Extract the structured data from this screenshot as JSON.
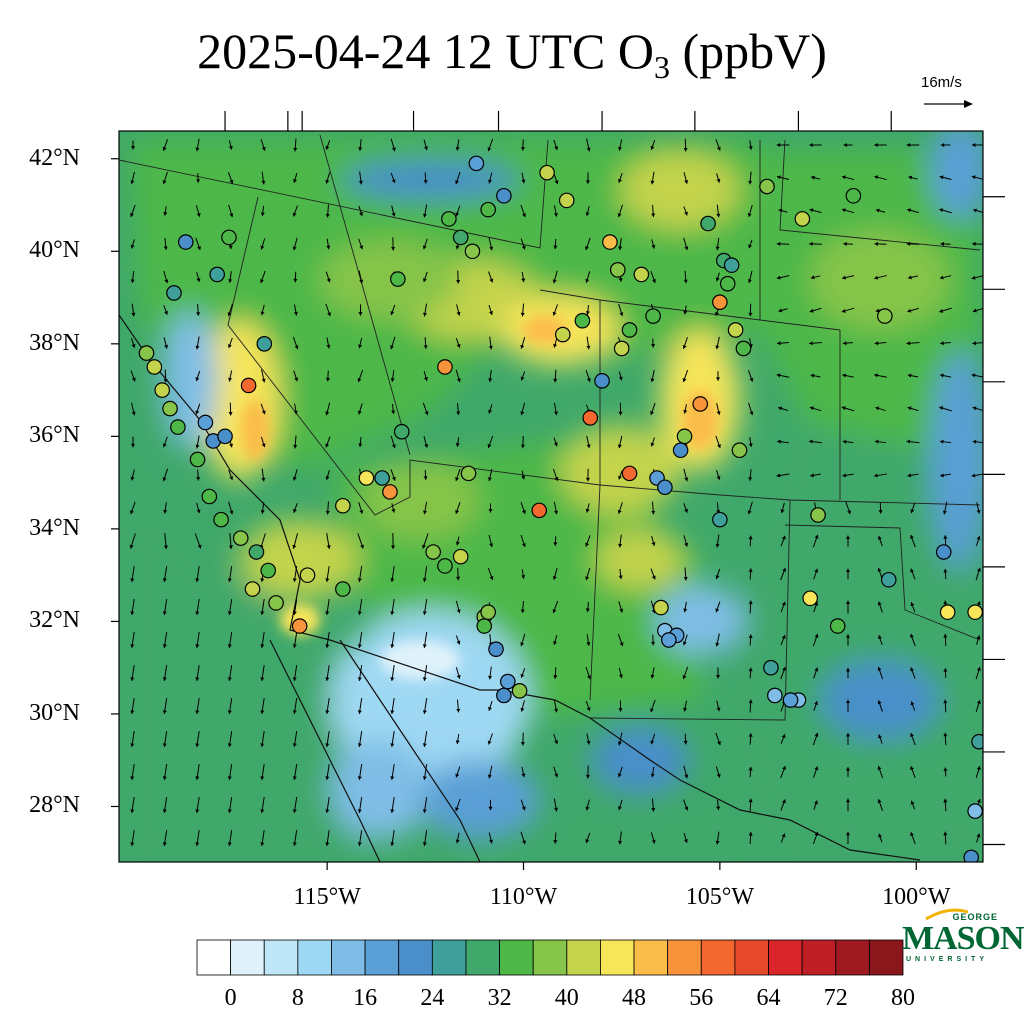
{
  "title": {
    "prefix": "2025-04-24 12 UTC O",
    "subscript": "3",
    "suffix": " (ppbV)"
  },
  "wind_reference": {
    "label": "16m/s"
  },
  "map": {
    "projection": "lat-lon",
    "lat_range": [
      26.8,
      42.6
    ],
    "lon_range": [
      -120.3,
      -98.3
    ],
    "lat_ticks": [
      {
        "value": 42,
        "label": "42°N"
      },
      {
        "value": 40,
        "label": "40°N"
      },
      {
        "value": 38,
        "label": "38°N"
      },
      {
        "value": 36,
        "label": "36°N"
      },
      {
        "value": 34,
        "label": "34°N"
      },
      {
        "value": 32,
        "label": "32°N"
      },
      {
        "value": 30,
        "label": "30°N"
      },
      {
        "value": 28,
        "label": "28°N"
      }
    ],
    "lon_ticks": [
      {
        "value": -115,
        "label": "115°W"
      },
      {
        "value": -110,
        "label": "110°W"
      },
      {
        "value": -105,
        "label": "105°W"
      },
      {
        "value": -100,
        "label": "100°W"
      }
    ]
  },
  "colorbar": {
    "labels": [
      "0",
      "8",
      "16",
      "24",
      "32",
      "40",
      "48",
      "56",
      "64",
      "72",
      "80"
    ],
    "colors": [
      "#ffffff",
      "#dff2fb",
      "#bfe6f7",
      "#9fd8f3",
      "#7fbde6",
      "#5a9fd6",
      "#4a8fc9",
      "#3f9f9a",
      "#3fa86a",
      "#4db848",
      "#86c44a",
      "#c3d34b",
      "#f7e55a",
      "#fbbd4a",
      "#f7933b",
      "#f2682f",
      "#e64a2a",
      "#d8262a",
      "#be1f26",
      "#9e1a20",
      "#8a171c"
    ]
  },
  "logo": {
    "line1": "GEORGE",
    "line2": "MASON",
    "line3": "UNIVERSITY"
  },
  "stations_sample": [
    {
      "lon": -117.0,
      "lat": 37.1,
      "o3": 60
    },
    {
      "lon": -112.0,
      "lat": 37.5,
      "o3": 58
    },
    {
      "lon": -113.4,
      "lat": 34.8,
      "o3": 56
    },
    {
      "lon": -109.6,
      "lat": 34.4,
      "o3": 60
    },
    {
      "lon": -108.3,
      "lat": 36.4,
      "o3": 62
    },
    {
      "lon": -107.3,
      "lat": 35.2,
      "o3": 62
    },
    {
      "lon": -105.5,
      "lat": 36.7,
      "o3": 56
    },
    {
      "lon": -107.8,
      "lat": 40.2,
      "o3": 54
    },
    {
      "lon": -105.0,
      "lat": 38.9,
      "o3": 56
    },
    {
      "lon": -115.7,
      "lat": 31.9,
      "o3": 58
    },
    {
      "lon": -117.5,
      "lat": 40.3,
      "o3": 36
    },
    {
      "lon": -114.0,
      "lat": 35.1,
      "o3": 50
    },
    {
      "lon": -111.0,
      "lat": 32.1,
      "o3": 42
    },
    {
      "lon": -103.0,
      "lat": 30.3,
      "o3": 18
    },
    {
      "lon": -99.2,
      "lat": 32.2,
      "o3": 48
    }
  ]
}
